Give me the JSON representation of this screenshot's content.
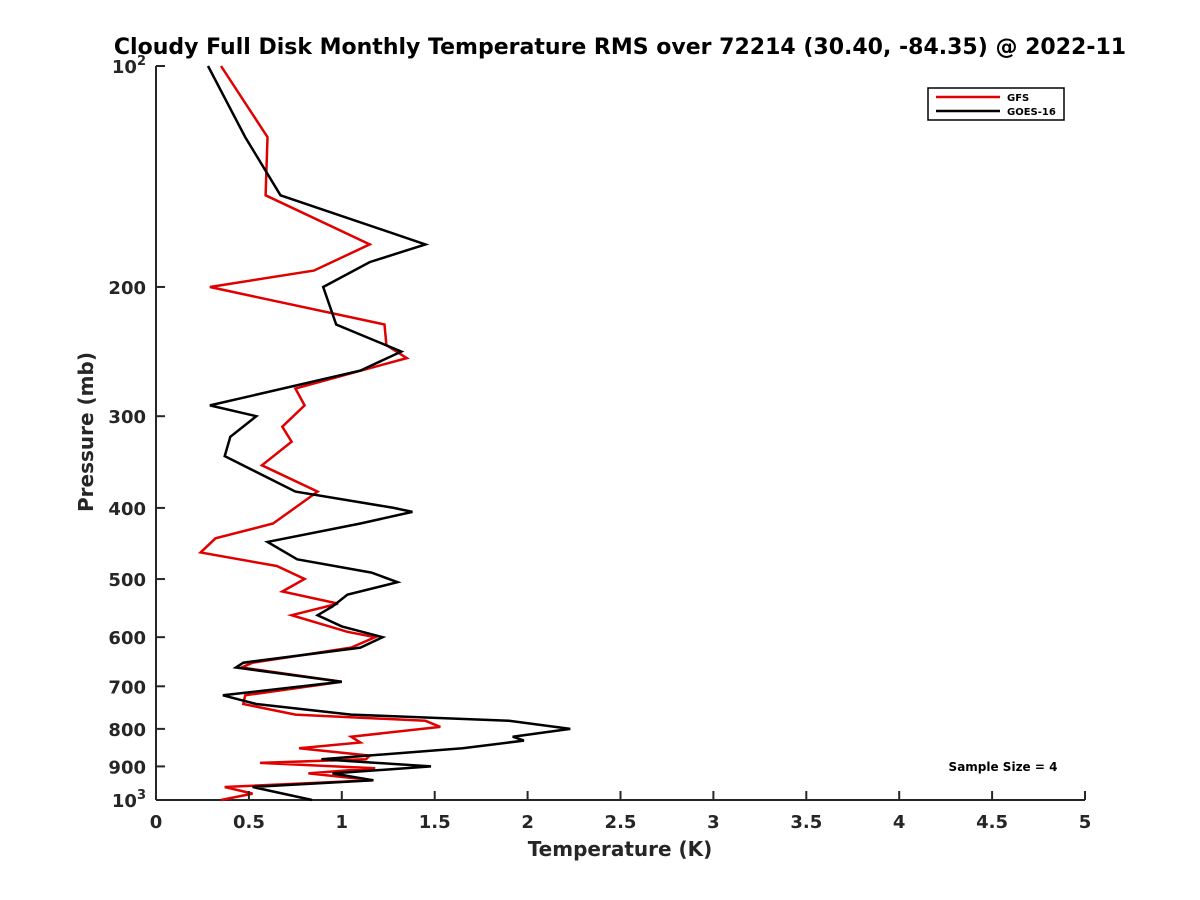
{
  "chart_data": {
    "type": "line",
    "title": "Cloudy Full Disk Monthly Temperature RMS over 72214 (30.40, -84.35) @ 2022-11",
    "xlabel": "Temperature (K)",
    "ylabel": "Pressure (mb)",
    "xlim": [
      0,
      5
    ],
    "ylim": [
      1000,
      100
    ],
    "yscale": "log",
    "y_reversed": true,
    "grid": false,
    "legend_position": "top-right",
    "x_ticks": [
      0,
      0.5,
      1,
      1.5,
      2,
      2.5,
      3,
      3.5,
      4,
      4.5,
      5
    ],
    "x_tick_labels": [
      "0",
      "0.5",
      "1",
      "1.5",
      "2",
      "2.5",
      "3",
      "3.5",
      "4",
      "4.5",
      "5"
    ],
    "y_ticks": [
      100,
      200,
      300,
      400,
      500,
      600,
      700,
      800,
      900,
      1000
    ],
    "y_tick_labels": [
      {
        "base": "10",
        "exp": "2"
      },
      {
        "base": "200",
        "exp": ""
      },
      {
        "base": "300",
        "exp": ""
      },
      {
        "base": "400",
        "exp": ""
      },
      {
        "base": "500",
        "exp": ""
      },
      {
        "base": "600",
        "exp": ""
      },
      {
        "base": "700",
        "exp": ""
      },
      {
        "base": "800",
        "exp": ""
      },
      {
        "base": "900",
        "exp": ""
      },
      {
        "base": "10",
        "exp": "3"
      }
    ],
    "series": [
      {
        "name": "GFS",
        "color": "#e00000",
        "points": [
          [
            0.35,
            100
          ],
          [
            0.6,
            125
          ],
          [
            0.59,
            150
          ],
          [
            1.15,
            175
          ],
          [
            0.85,
            190
          ],
          [
            0.29,
            200
          ],
          [
            1.23,
            225
          ],
          [
            1.24,
            240
          ],
          [
            1.35,
            250
          ],
          [
            0.75,
            275
          ],
          [
            0.8,
            290
          ],
          [
            0.68,
            310
          ],
          [
            0.73,
            325
          ],
          [
            0.57,
            350
          ],
          [
            0.87,
            380
          ],
          [
            0.63,
            420
          ],
          [
            0.32,
            440
          ],
          [
            0.24,
            460
          ],
          [
            0.65,
            480
          ],
          [
            0.8,
            500
          ],
          [
            0.68,
            520
          ],
          [
            0.98,
            540
          ],
          [
            0.73,
            560
          ],
          [
            1.03,
            590
          ],
          [
            1.18,
            600
          ],
          [
            1.05,
            620
          ],
          [
            0.52,
            650
          ],
          [
            0.46,
            660
          ],
          [
            1.0,
            690
          ],
          [
            0.48,
            720
          ],
          [
            0.47,
            740
          ],
          [
            0.75,
            765
          ],
          [
            1.45,
            780
          ],
          [
            1.53,
            795
          ],
          [
            1.05,
            820
          ],
          [
            1.1,
            835
          ],
          [
            0.77,
            850
          ],
          [
            1.15,
            870
          ],
          [
            1.13,
            880
          ],
          [
            0.56,
            890
          ],
          [
            1.18,
            905
          ],
          [
            0.82,
            920
          ],
          [
            1.17,
            940
          ],
          [
            0.37,
            960
          ],
          [
            0.52,
            980
          ],
          [
            0.35,
            1000
          ]
        ]
      },
      {
        "name": "GOES-16",
        "color": "#000000",
        "points": [
          [
            0.28,
            100
          ],
          [
            0.48,
            125
          ],
          [
            0.67,
            150
          ],
          [
            1.45,
            175
          ],
          [
            1.15,
            185
          ],
          [
            0.9,
            200
          ],
          [
            0.97,
            225
          ],
          [
            1.32,
            245
          ],
          [
            1.1,
            260
          ],
          [
            0.29,
            290
          ],
          [
            0.54,
            300
          ],
          [
            0.4,
            320
          ],
          [
            0.37,
            340
          ],
          [
            0.75,
            380
          ],
          [
            1.28,
            400
          ],
          [
            1.38,
            405
          ],
          [
            1.1,
            420
          ],
          [
            0.6,
            445
          ],
          [
            0.76,
            470
          ],
          [
            1.16,
            490
          ],
          [
            1.3,
            505
          ],
          [
            1.03,
            525
          ],
          [
            0.95,
            545
          ],
          [
            0.87,
            560
          ],
          [
            1.0,
            580
          ],
          [
            1.22,
            600
          ],
          [
            1.1,
            620
          ],
          [
            0.47,
            650
          ],
          [
            0.43,
            660
          ],
          [
            1.0,
            690
          ],
          [
            0.36,
            720
          ],
          [
            0.54,
            740
          ],
          [
            1.05,
            765
          ],
          [
            1.9,
            780
          ],
          [
            2.23,
            800
          ],
          [
            1.92,
            820
          ],
          [
            1.98,
            830
          ],
          [
            1.65,
            850
          ],
          [
            0.89,
            880
          ],
          [
            1.48,
            900
          ],
          [
            0.95,
            920
          ],
          [
            1.17,
            940
          ],
          [
            0.52,
            960
          ],
          [
            0.84,
            1000
          ]
        ]
      }
    ],
    "annotation": "Sample Size = 4"
  }
}
